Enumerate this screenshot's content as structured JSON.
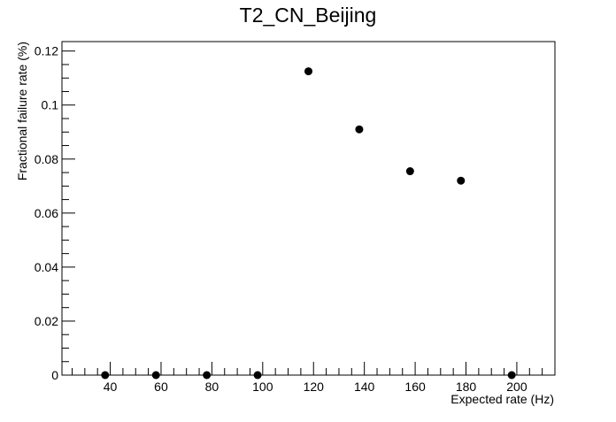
{
  "chart_data": {
    "type": "scatter",
    "title": "T2_CN_Beijing",
    "xlabel": "Expected rate (Hz)",
    "ylabel": "Fractional failure rate (%)",
    "xlim": [
      21,
      215
    ],
    "ylim": [
      0,
      0.1235
    ],
    "x_ticks": [
      40,
      60,
      80,
      100,
      120,
      140,
      160,
      180,
      200
    ],
    "y_ticks": [
      0,
      0.02,
      0.04,
      0.06,
      0.08,
      0.1,
      0.12
    ],
    "x_tick_labels": [
      "40",
      "60",
      "80",
      "100",
      "120",
      "140",
      "160",
      "180",
      "200"
    ],
    "y_tick_labels": [
      "0",
      "0.02",
      "0.04",
      "0.06",
      "0.08",
      "0.1",
      "0.12"
    ],
    "series": [
      {
        "x": [
          38,
          58,
          78,
          98,
          118,
          138,
          158,
          178,
          198
        ],
        "y": [
          0,
          0,
          0,
          0,
          0.1125,
          0.091,
          0.0755,
          0.072,
          0
        ]
      }
    ],
    "marker_color": "#000000",
    "grid": false,
    "legend": "none"
  }
}
